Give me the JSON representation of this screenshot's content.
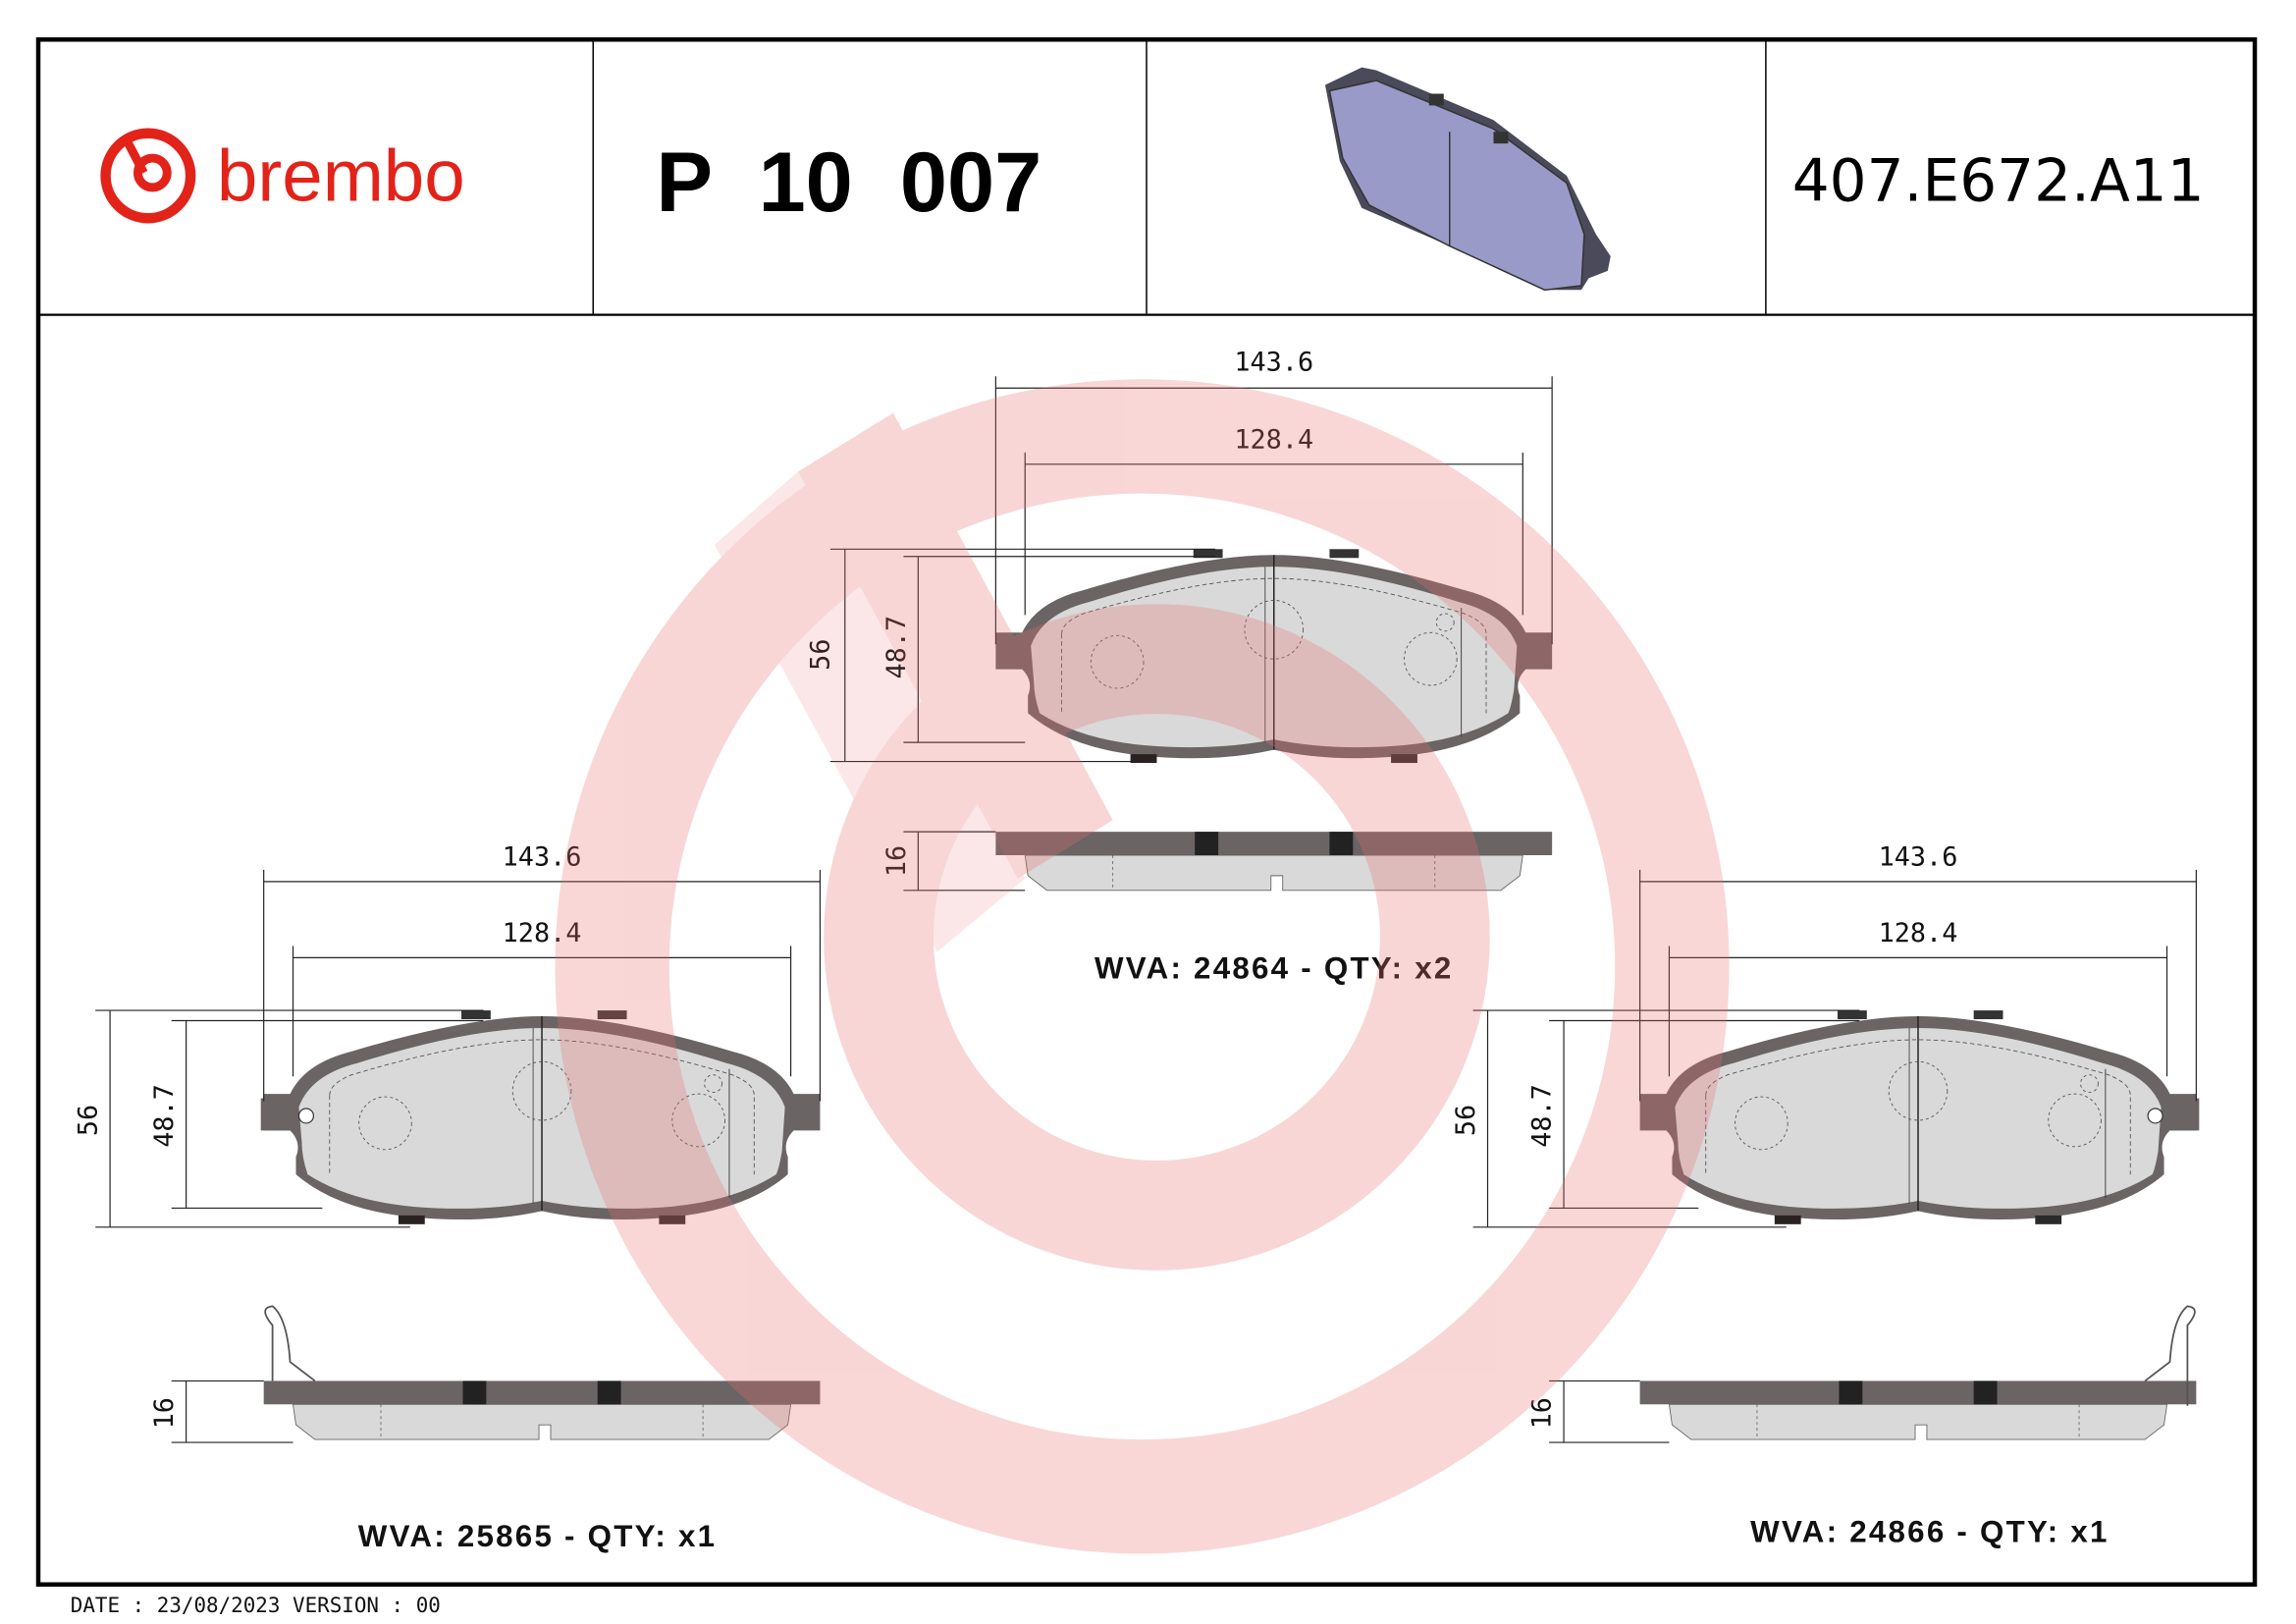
{
  "header": {
    "brand": "brembo",
    "part_number": "P  10  007",
    "reference_code": "407.E672.A11"
  },
  "colors": {
    "brand_red": "#e2231a",
    "watermark": "#f5c9c9",
    "backing_plate": "#6a6464",
    "friction_material": "#d9d9d9",
    "thumbnail_pad": "#9a9ac8"
  },
  "pads": [
    {
      "width_outer": "143.6",
      "width_inner": "128.4",
      "height_outer": "56",
      "height_inner": "48.7",
      "thickness": "16",
      "label": "WVA: 24864 - QTY: x2"
    },
    {
      "width_outer": "143.6",
      "width_inner": "128.4",
      "height_outer": "56",
      "height_inner": "48.7",
      "thickness": "16",
      "label": "WVA: 25865 - QTY: x1"
    },
    {
      "width_outer": "143.6",
      "width_inner": "128.4",
      "height_outer": "56",
      "height_inner": "48.7",
      "thickness": "16",
      "label": "WVA: 24866 - QTY: x1"
    }
  ],
  "footer": {
    "date_version": "DATE : 23/08/2023 VERSION : 00"
  }
}
